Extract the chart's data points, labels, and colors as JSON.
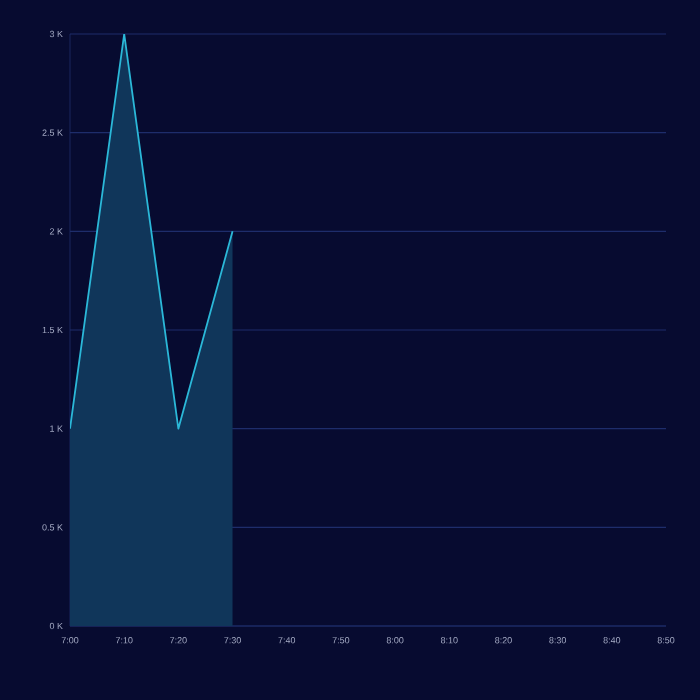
{
  "chart_data": {
    "type": "area",
    "x": [
      7,
      7.1667,
      7.3333,
      7.5
    ],
    "series": [
      {
        "color": "#2bb8d8",
        "values": [
          1000,
          3000,
          1000,
          2000
        ]
      }
    ],
    "xlim": [
      7,
      8.8333
    ],
    "xticks": [
      {
        "value": 7,
        "label": "7:00"
      },
      {
        "value": 7.1667,
        "label": "7:10"
      },
      {
        "value": 7.3333,
        "label": "7:20"
      },
      {
        "value": 7.5,
        "label": "7:30"
      },
      {
        "value": 7.6667,
        "label": "7:40"
      },
      {
        "value": 7.8333,
        "label": "7:50"
      },
      {
        "value": 8,
        "label": "8:00"
      },
      {
        "value": 8.1667,
        "label": "8:10"
      },
      {
        "value": 8.3333,
        "label": "8:20"
      },
      {
        "value": 8.5,
        "label": "8:30"
      },
      {
        "value": 8.6667,
        "label": "8:40"
      },
      {
        "value": 8.8333,
        "label": "8:50"
      }
    ],
    "ylim": [
      0,
      3000
    ],
    "yticks": [
      {
        "value": 0,
        "label": "0 K"
      },
      {
        "value": 500,
        "label": "0.5 K"
      },
      {
        "value": 1000,
        "label": "1 K"
      },
      {
        "value": 1500,
        "label": "1.5 K"
      },
      {
        "value": 2000,
        "label": "2 K"
      },
      {
        "value": 2500,
        "label": "2.5 K"
      },
      {
        "value": 3000,
        "label": "3 K"
      }
    ],
    "grid": "y",
    "marker": "none"
  }
}
